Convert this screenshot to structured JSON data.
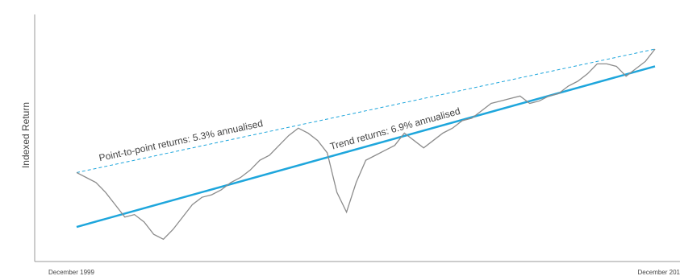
{
  "chart_data": {
    "type": "line",
    "y_label": "Indexed Return",
    "categories": [
      "December 1999",
      null,
      null,
      null,
      null,
      null,
      null,
      null,
      null,
      null,
      null,
      null,
      null,
      null,
      null,
      null,
      null,
      null,
      null,
      null,
      null,
      null,
      null,
      null,
      null,
      null,
      null,
      null,
      null,
      null,
      null,
      null,
      null,
      null,
      null,
      null,
      null,
      null,
      null,
      null,
      null,
      null,
      null,
      null,
      null,
      null,
      null,
      null,
      null,
      null,
      null,
      null,
      null,
      null,
      null,
      null,
      null,
      null,
      null,
      null,
      "December 201"
    ],
    "series": [
      {
        "color": "#8c8c8c",
        "values": [
          36,
          34,
          32,
          28,
          23,
          18,
          19,
          16,
          11,
          9,
          13,
          18,
          23,
          26,
          27,
          29,
          32,
          34,
          37,
          41,
          43,
          47,
          51,
          54,
          52,
          49,
          44,
          28,
          20,
          32,
          41,
          43,
          45,
          47,
          52,
          49,
          46,
          49,
          52,
          54,
          57,
          58,
          61,
          64,
          65,
          66,
          67,
          64,
          65,
          67,
          68,
          71,
          73,
          76,
          80,
          80,
          79,
          75,
          78,
          81,
          86
        ]
      }
    ],
    "reference_lines": [
      {
        "label": "Point-to-point returns: 5.3% annualised",
        "color": "#1ea6dc",
        "dashed": true,
        "values": [
          36,
          86
        ]
      },
      {
        "label": "Trend returns: 6.9% annualised",
        "color": "#1ea6dc",
        "dashed": false,
        "values": [
          14,
          79
        ]
      }
    ],
    "ylim": [
      0,
      100
    ]
  }
}
